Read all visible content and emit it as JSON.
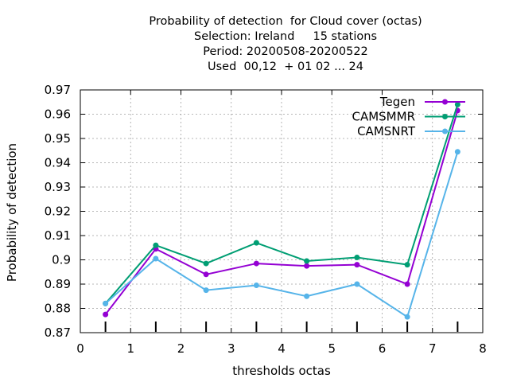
{
  "chart_data": {
    "type": "line",
    "title_lines": [
      "Probability of detection  for Cloud cover (octas)",
      "Selection: Ireland     15 stations",
      "Period: 20200508-20200522",
      "Used  00,12  + 01 02 ... 24"
    ],
    "xlabel": "thresholds octas",
    "ylabel": "Probability of detection",
    "xlim": [
      0,
      8
    ],
    "ylim": [
      0.87,
      0.97
    ],
    "x_ticks": [
      0,
      1,
      2,
      3,
      4,
      5,
      6,
      7,
      8
    ],
    "y_ticks": [
      "0.87",
      "0.88",
      "0.89",
      "0.9",
      "0.91",
      "0.92",
      "0.93",
      "0.94",
      "0.95",
      "0.96",
      "0.97"
    ],
    "grid": true,
    "legend_position": "top-right",
    "x": [
      0.5,
      1.5,
      2.5,
      3.5,
      4.5,
      5.5,
      6.5,
      7.5
    ],
    "series": [
      {
        "name": "Tegen",
        "color": "#9400d3",
        "values": [
          0.8775,
          0.9045,
          0.894,
          0.8985,
          0.8975,
          0.898,
          0.89,
          0.9615
        ]
      },
      {
        "name": "CAMSMMR",
        "color": "#009e73",
        "values": [
          0.882,
          0.906,
          0.8985,
          0.907,
          0.8995,
          0.901,
          0.898,
          0.964
        ]
      },
      {
        "name": "CAMSNRT",
        "color": "#56b4e9",
        "values": [
          0.882,
          0.9005,
          0.8875,
          0.8895,
          0.885,
          0.89,
          0.8765,
          0.9445
        ]
      }
    ]
  }
}
